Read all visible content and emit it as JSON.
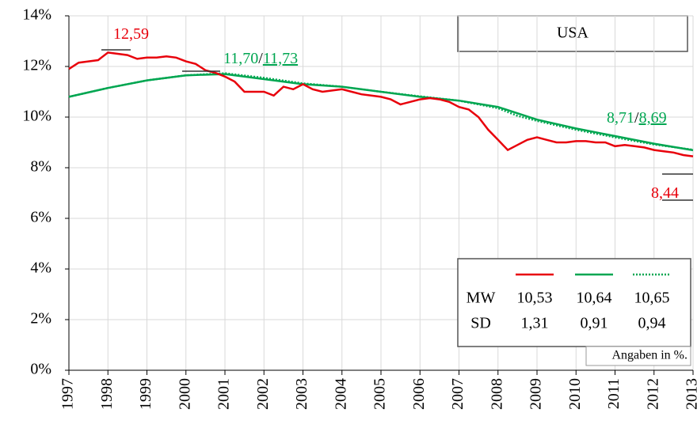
{
  "chart_data": {
    "type": "line",
    "title": "USA",
    "note": "Angaben in %.",
    "xlim": [
      1997,
      2013
    ],
    "xticks": [
      1997,
      1998,
      1999,
      2000,
      2001,
      2002,
      2003,
      2004,
      2005,
      2006,
      2007,
      2008,
      2009,
      2010,
      2011,
      2012,
      2013
    ],
    "ylim": [
      0,
      14
    ],
    "yticks": [
      {
        "value": 0,
        "label": "0%"
      },
      {
        "value": 2,
        "label": "2%"
      },
      {
        "value": 4,
        "label": "4%"
      },
      {
        "value": 6,
        "label": "6%"
      },
      {
        "value": 8,
        "label": "8%"
      },
      {
        "value": 10,
        "label": "10%"
      },
      {
        "value": 12,
        "label": "12%"
      },
      {
        "value": 14,
        "label": "14%"
      }
    ],
    "grid": true,
    "series": [
      {
        "color": "#e8000b",
        "style": "solid",
        "x": [
          1997,
          1997.25,
          1997.5,
          1997.75,
          1998,
          1998.25,
          1998.5,
          1998.75,
          1999,
          1999.25,
          1999.5,
          1999.75,
          2000,
          2000.25,
          2000.5,
          2000.75,
          2001,
          2001.25,
          2001.5,
          2001.75,
          2002,
          2002.25,
          2002.5,
          2002.75,
          2003,
          2003.25,
          2003.5,
          2003.75,
          2004,
          2004.25,
          2004.5,
          2004.75,
          2005,
          2005.25,
          2005.5,
          2005.75,
          2006,
          2006.25,
          2006.5,
          2006.75,
          2007,
          2007.25,
          2007.5,
          2007.75,
          2008,
          2008.25,
          2008.5,
          2008.75,
          2009,
          2009.25,
          2009.5,
          2009.75,
          2010,
          2010.25,
          2010.5,
          2010.75,
          2011,
          2011.25,
          2011.5,
          2011.75,
          2012,
          2012.25,
          2012.5,
          2012.75,
          2013
        ],
        "values": [
          11.9,
          12.15,
          12.2,
          12.25,
          12.55,
          12.5,
          12.45,
          12.3,
          12.35,
          12.35,
          12.4,
          12.35,
          12.2,
          12.1,
          11.85,
          11.75,
          11.6,
          11.4,
          11.0,
          11.0,
          11.0,
          10.85,
          11.2,
          11.1,
          11.3,
          11.1,
          11.0,
          11.05,
          11.1,
          11.0,
          10.9,
          10.85,
          10.8,
          10.7,
          10.5,
          10.6,
          10.7,
          10.75,
          10.7,
          10.6,
          10.4,
          10.3,
          10.0,
          9.5,
          9.1,
          8.7,
          8.9,
          9.1,
          9.2,
          9.1,
          9.0,
          9.0,
          9.05,
          9.05,
          9.0,
          9.0,
          8.85,
          8.9,
          8.85,
          8.8,
          8.7,
          8.65,
          8.6,
          8.5,
          8.45
        ]
      },
      {
        "color": "#00a651",
        "style": "solid",
        "x": [
          1997,
          1998,
          1999,
          2000,
          2001,
          2002,
          2003,
          2004,
          2005,
          2006,
          2007,
          2008,
          2008.5,
          2009,
          2010,
          2011,
          2012,
          2013
        ],
        "values": [
          10.8,
          11.15,
          11.45,
          11.65,
          11.7,
          11.5,
          11.3,
          11.2,
          11.0,
          10.8,
          10.65,
          10.4,
          10.15,
          9.9,
          9.55,
          9.25,
          8.95,
          8.69
        ]
      },
      {
        "color": "#00a651",
        "style": "dotted",
        "x": [
          1997,
          1998,
          1999,
          2000,
          2001,
          2002,
          2003,
          2004,
          2005,
          2006,
          2007,
          2008,
          2008.5,
          2009,
          2010,
          2011,
          2012,
          2013
        ],
        "values": [
          10.8,
          11.15,
          11.45,
          11.65,
          11.73,
          11.55,
          11.33,
          11.2,
          11.0,
          10.82,
          10.65,
          10.35,
          10.05,
          9.85,
          9.5,
          9.2,
          8.92,
          8.71
        ]
      }
    ],
    "annotations": [
      {
        "parts": [
          "12,59"
        ],
        "color": "#e8000b"
      },
      {
        "parts": [
          "11,70",
          "/",
          "11,73"
        ],
        "color": "#00a651"
      },
      {
        "parts": [
          "8,71",
          "/",
          "8,69"
        ],
        "color": "#00a651"
      },
      {
        "parts": [
          "8,44"
        ],
        "color": "#e8000b"
      }
    ],
    "stats": [
      {
        "label": "MW",
        "values": [
          "10,53",
          "10,64",
          "10,65"
        ]
      },
      {
        "label": "SD",
        "values": [
          "1,31",
          "0,91",
          "0,94"
        ]
      }
    ]
  }
}
